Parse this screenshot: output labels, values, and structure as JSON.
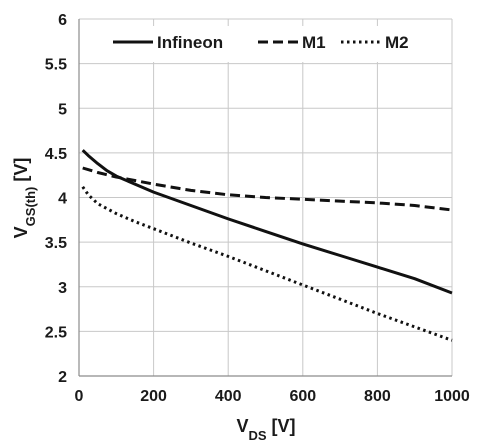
{
  "chart_data": {
    "type": "line",
    "xlabel": {
      "main": "V",
      "sub": "DS",
      "unit": " [V]"
    },
    "ylabel": {
      "main": "V",
      "sub": "GS(th)",
      "unit": " [V]"
    },
    "xlim": [
      0,
      1000
    ],
    "ylim": [
      2,
      6
    ],
    "xticks": [
      0,
      200,
      400,
      600,
      800,
      1000
    ],
    "yticks": [
      2,
      2.5,
      3,
      3.5,
      4,
      4.5,
      5,
      5.5,
      6
    ],
    "xtick_labels": [
      "0",
      "200",
      "400",
      "600",
      "800",
      "1000"
    ],
    "ytick_labels": [
      "2",
      "2.5",
      "3",
      "3.5",
      "4",
      "4.5",
      "5",
      "5.5",
      "6"
    ],
    "grid": "major gridlines on both axes",
    "legend_position": "top",
    "series": [
      {
        "name": "Infineon",
        "style": "solid",
        "x": [
          10,
          25,
          50,
          75,
          100,
          150,
          200,
          300,
          400,
          500,
          600,
          700,
          800,
          900,
          1000
        ],
        "y": [
          4.53,
          4.47,
          4.38,
          4.3,
          4.24,
          4.15,
          4.06,
          3.91,
          3.76,
          3.62,
          3.48,
          3.35,
          3.22,
          3.09,
          2.93
        ]
      },
      {
        "name": "M1",
        "style": "dashed",
        "x": [
          10,
          50,
          100,
          150,
          200,
          300,
          400,
          500,
          600,
          700,
          800,
          900,
          1000
        ],
        "y": [
          4.33,
          4.28,
          4.23,
          4.19,
          4.15,
          4.08,
          4.03,
          4.0,
          3.98,
          3.96,
          3.94,
          3.91,
          3.86
        ]
      },
      {
        "name": "M2",
        "style": "dotted",
        "x": [
          10,
          25,
          50,
          100,
          150,
          200,
          300,
          400,
          500,
          600,
          700,
          800,
          900,
          1000
        ],
        "y": [
          4.12,
          4.03,
          3.93,
          3.82,
          3.73,
          3.65,
          3.49,
          3.34,
          3.18,
          3.02,
          2.86,
          2.7,
          2.55,
          2.4
        ]
      }
    ]
  }
}
